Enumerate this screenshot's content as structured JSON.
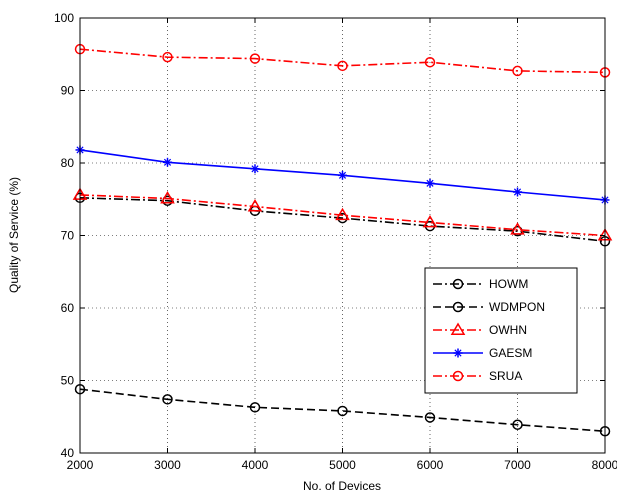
{
  "chart_data": {
    "type": "line",
    "title": "",
    "xlabel": "No. of Devices",
    "ylabel": "Quality of Service (%)",
    "x": [
      2000,
      3000,
      4000,
      5000,
      6000,
      7000,
      8000
    ],
    "xticks": [
      "2000",
      "3000",
      "4000",
      "5000",
      "6000",
      "7000",
      "8000"
    ],
    "yticks": [
      "40",
      "50",
      "60",
      "70",
      "80",
      "90",
      "100"
    ],
    "xlim": [
      2000,
      8000
    ],
    "ylim": [
      40,
      100
    ],
    "grid": true,
    "legend_position": "lower-right",
    "series": [
      {
        "name": "HOWM",
        "values": [
          75.2,
          74.8,
          73.4,
          72.4,
          71.3,
          70.6,
          69.2
        ],
        "color": "#000000",
        "dash": "dashdot",
        "marker": "circle"
      },
      {
        "name": "WDMPON",
        "values": [
          48.8,
          47.4,
          46.3,
          45.8,
          44.9,
          43.9,
          43.0
        ],
        "color": "#000000",
        "dash": "dashed",
        "marker": "circle"
      },
      {
        "name": "OWHN",
        "values": [
          75.6,
          75.1,
          74.0,
          72.8,
          71.8,
          70.8,
          70.0
        ],
        "color": "#ff0000",
        "dash": "dashdot",
        "marker": "triangle"
      },
      {
        "name": "GAESM",
        "values": [
          81.8,
          80.1,
          79.2,
          78.3,
          77.2,
          76.0,
          74.9
        ],
        "color": "#0000ff",
        "dash": "solid",
        "marker": "star"
      },
      {
        "name": "SRUA",
        "values": [
          95.7,
          94.6,
          94.4,
          93.4,
          93.9,
          92.7,
          92.5
        ],
        "color": "#ff0000",
        "dash": "dashdot",
        "marker": "circle"
      }
    ]
  }
}
